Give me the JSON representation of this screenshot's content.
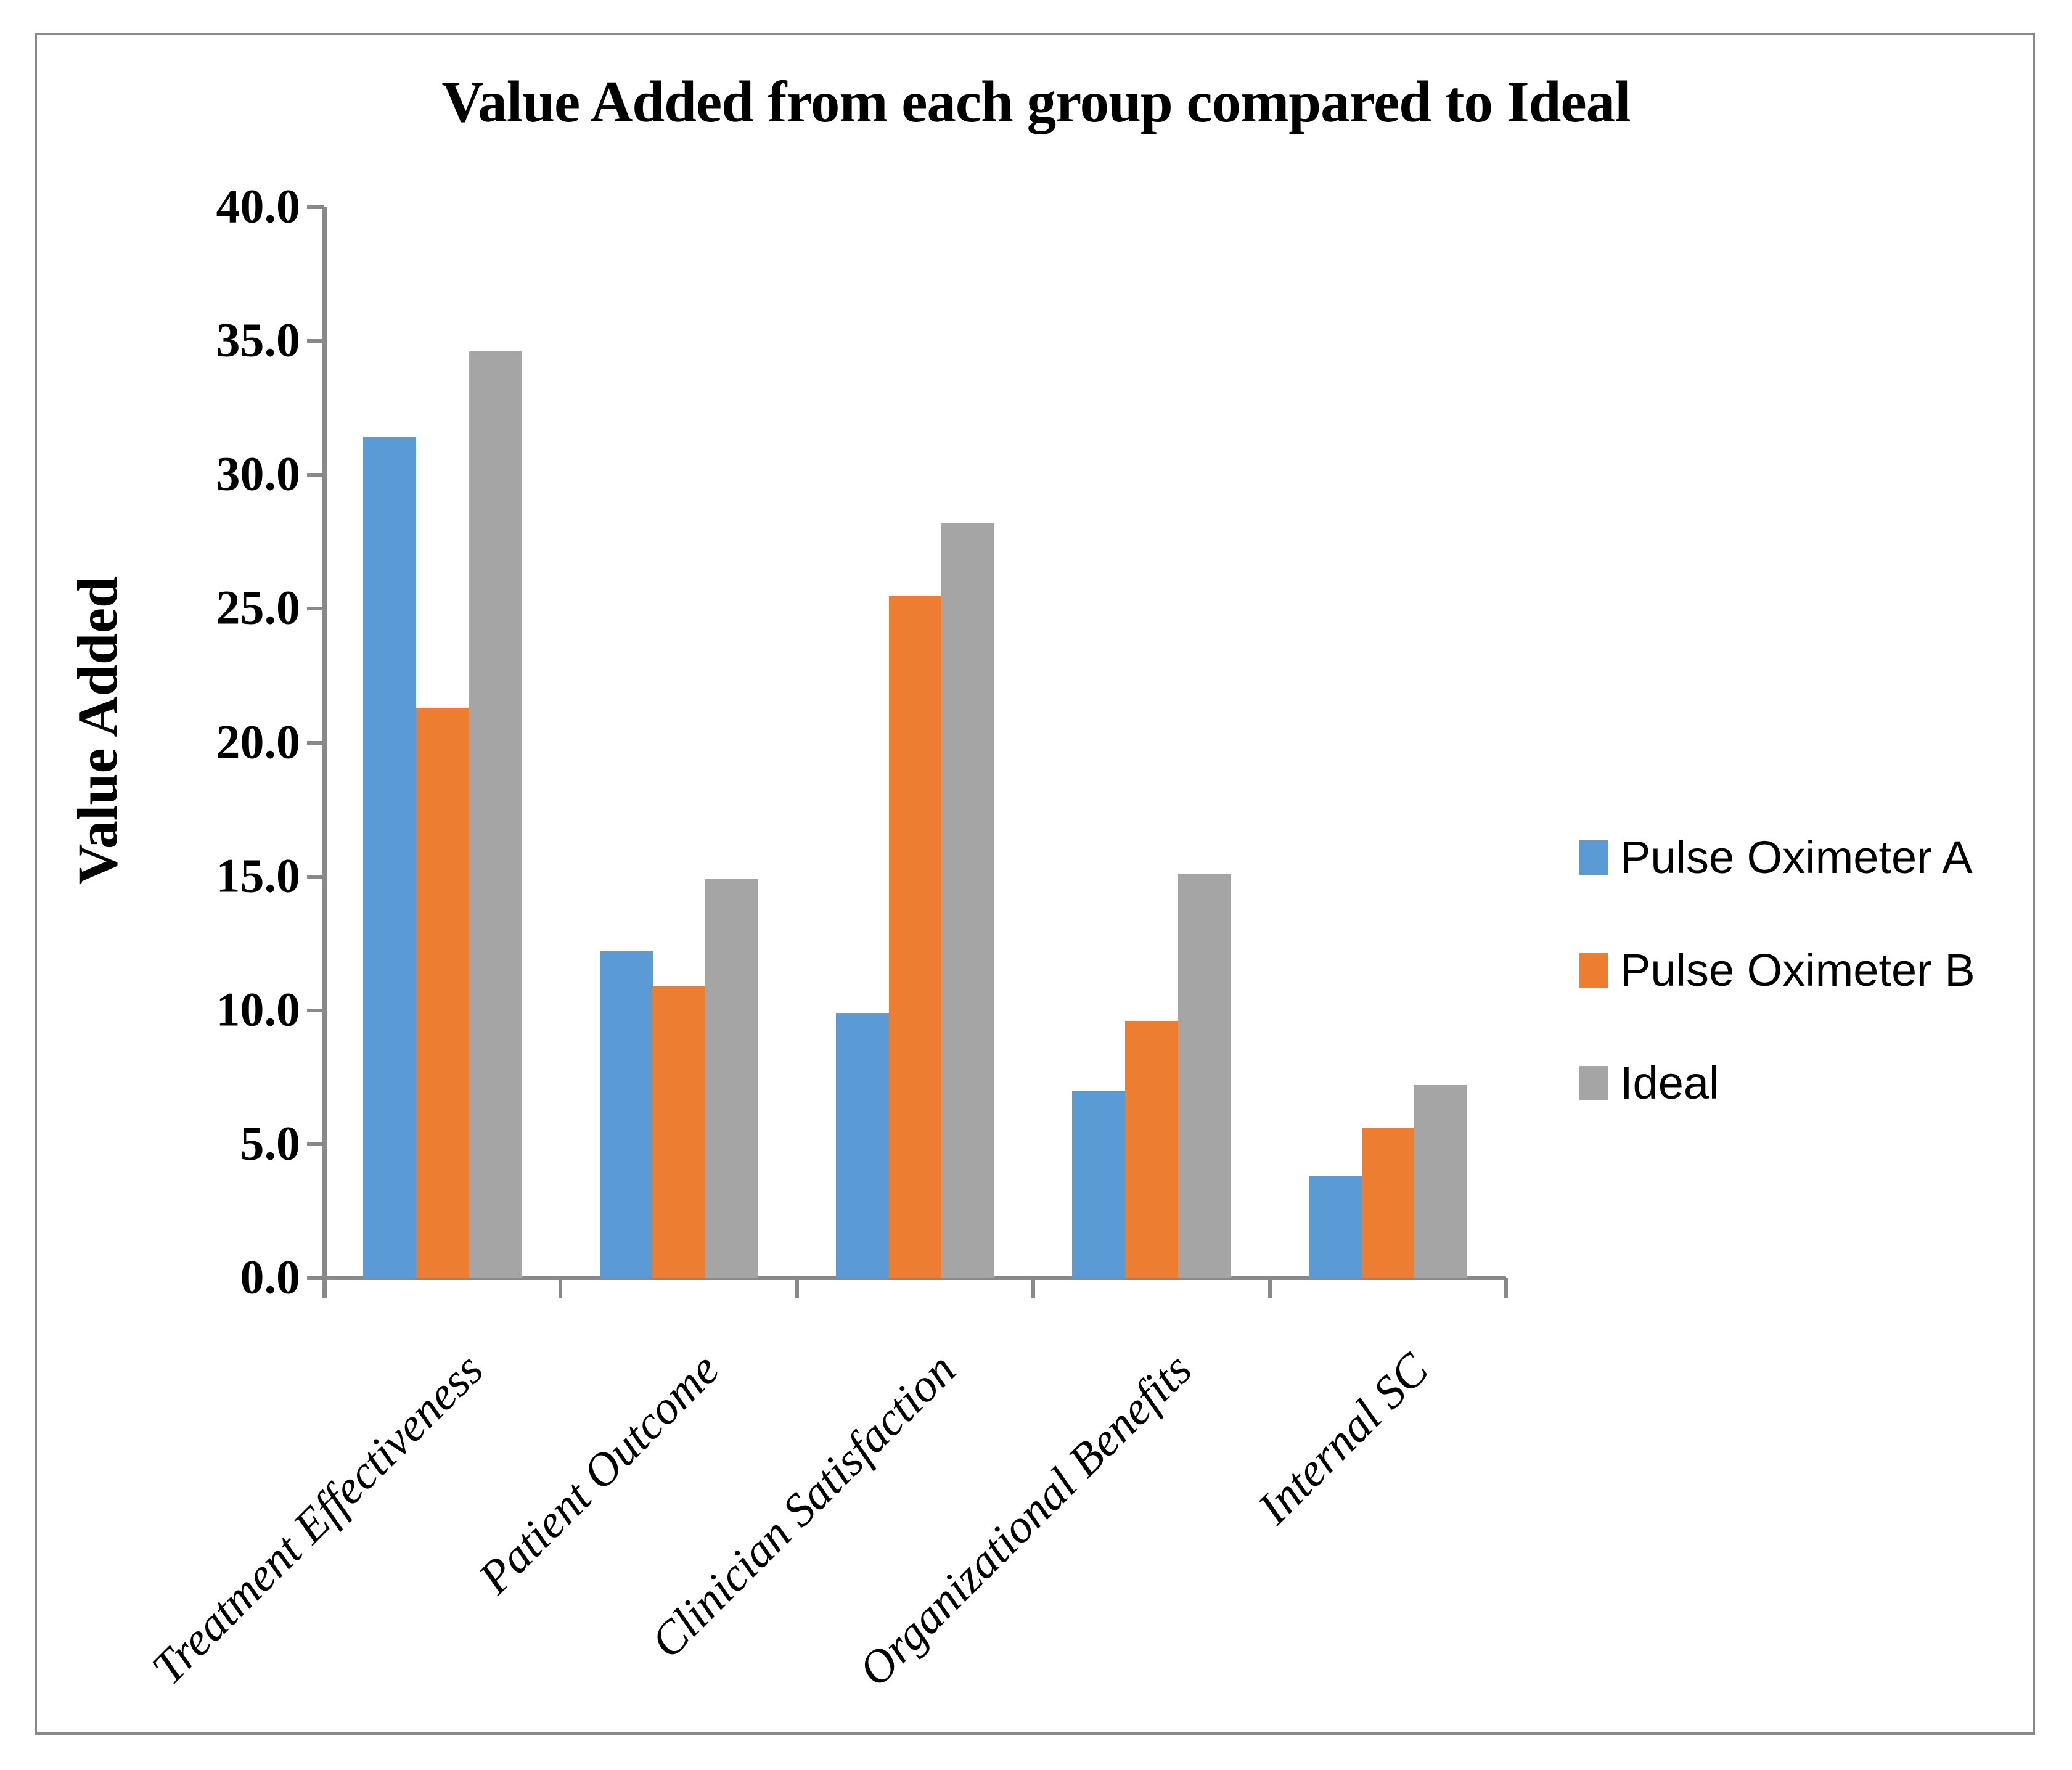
{
  "chart_data": {
    "type": "bar",
    "title": "Value Added from each group compared to Ideal",
    "xlabel": "",
    "ylabel": "Value Added",
    "categories": [
      "Treatment Effectiveness",
      "Patient Outcome",
      "Clinician Satisfaction",
      "Organizational Benefits",
      "Internal SC"
    ],
    "series": [
      {
        "name": "Pulse Oximeter A",
        "color": "#5B9BD5",
        "values": [
          31.4,
          12.2,
          9.9,
          7.0,
          3.8
        ]
      },
      {
        "name": "Pulse Oximeter B",
        "color": "#ED7D31",
        "values": [
          21.3,
          10.9,
          25.5,
          9.6,
          5.6
        ]
      },
      {
        "name": "Ideal",
        "color": "#A5A5A5",
        "values": [
          34.6,
          14.9,
          28.2,
          15.1,
          7.2
        ]
      }
    ],
    "ylim": [
      0,
      40
    ],
    "ytick_step": 5,
    "ytick_labels": [
      "0.0",
      "5.0",
      "10.0",
      "15.0",
      "20.0",
      "25.0",
      "30.0",
      "35.0",
      "40.0"
    ],
    "grid": false,
    "legend_position": "right-middle",
    "colors": {
      "axis": "#898989",
      "border": "#898989",
      "background": "#FFFFFF",
      "text": "#000000"
    }
  }
}
